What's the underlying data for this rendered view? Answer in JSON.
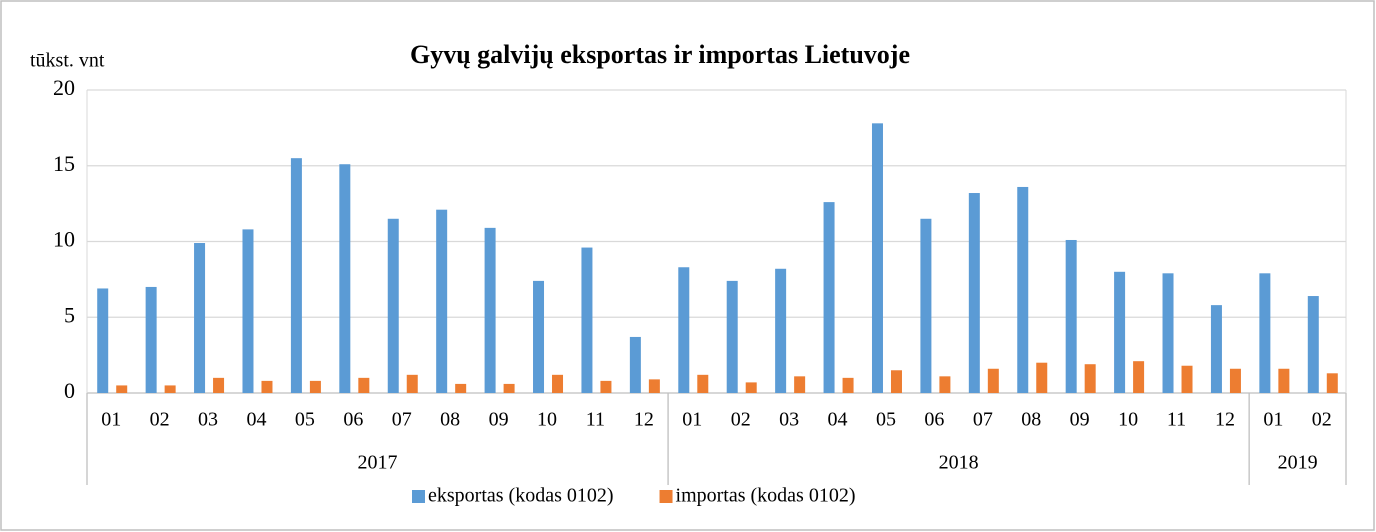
{
  "chart_data": {
    "type": "bar",
    "title": "Gyvų galvijų eksportas ir importas Lietuvoje",
    "y_label": "tūkst. vnt",
    "groups": [
      {
        "label": "2017",
        "categories": [
          "01",
          "02",
          "03",
          "04",
          "05",
          "06",
          "07",
          "08",
          "09",
          "10",
          "11",
          "12"
        ]
      },
      {
        "label": "2018",
        "categories": [
          "01",
          "02",
          "03",
          "04",
          "05",
          "06",
          "07",
          "08",
          "09",
          "10",
          "11",
          "12"
        ]
      },
      {
        "label": "2019",
        "categories": [
          "01",
          "02"
        ]
      }
    ],
    "series": [
      {
        "name": "eksportas (kodas 0102)",
        "color": "#5b9bd5",
        "values": [
          6.9,
          7.0,
          9.9,
          10.8,
          15.5,
          15.1,
          11.5,
          12.1,
          10.9,
          7.4,
          9.6,
          3.7,
          8.3,
          7.4,
          8.2,
          12.6,
          17.8,
          11.5,
          13.2,
          13.6,
          10.1,
          8.0,
          7.9,
          5.8,
          7.9,
          6.4
        ]
      },
      {
        "name": "importas (kodas 0102)",
        "color": "#ed7d31",
        "values": [
          0.5,
          0.5,
          1.0,
          0.8,
          0.8,
          1.0,
          1.2,
          0.6,
          0.6,
          1.2,
          0.8,
          0.9,
          1.2,
          0.7,
          1.1,
          1.0,
          1.5,
          1.1,
          1.6,
          2.0,
          1.9,
          2.1,
          1.8,
          1.6,
          1.6,
          1.3
        ]
      }
    ],
    "ylim": [
      0,
      20
    ],
    "yticks": [
      0,
      5,
      10,
      15,
      20
    ],
    "grid": true,
    "legend": "bottom"
  }
}
